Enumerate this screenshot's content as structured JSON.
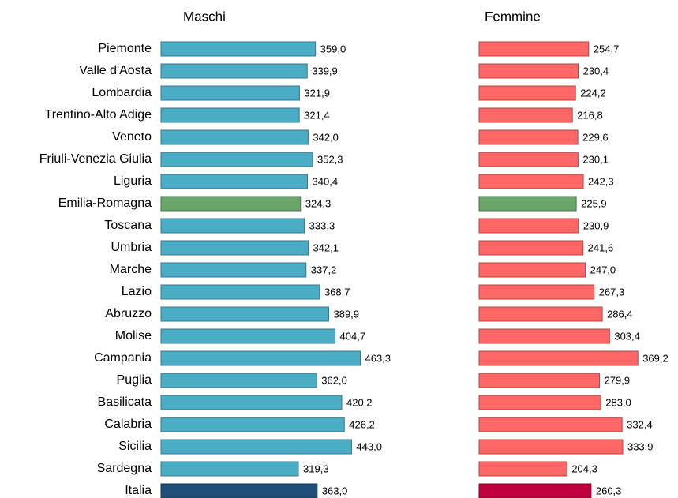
{
  "chart_data": [
    {
      "type": "hbar",
      "title": "Maschi",
      "categories": [
        "Piemonte",
        "Valle d'Aosta",
        "Lombardia",
        "Trentino-Alto Adige",
        "Veneto",
        "Friuli-Venezia Giulia",
        "Liguria",
        "Emilia-Romagna",
        "Toscana",
        "Umbria",
        "Marche",
        "Lazio",
        "Abruzzo",
        "Molise",
        "Campania",
        "Puglia",
        "Basilicata",
        "Calabria",
        "Sicilia",
        "Sardegna",
        "Italia"
      ],
      "values": [
        359.0,
        339.9,
        321.9,
        321.4,
        342.0,
        352.3,
        340.4,
        324.3,
        333.3,
        342.1,
        337.2,
        368.7,
        389.9,
        404.7,
        463.3,
        362.0,
        420.2,
        426.2,
        443.0,
        319.3,
        363.0
      ],
      "value_labels": [
        "359,0",
        "339,9",
        "321,9",
        "321,4",
        "342,0",
        "352,3",
        "340,4",
        "324,3",
        "333,3",
        "342,1",
        "337,2",
        "368,7",
        "389,9",
        "404,7",
        "463,3",
        "362,0",
        "420,2",
        "426,2",
        "443,0",
        "319,3",
        "363,0"
      ],
      "colors": [
        "#4bacc6",
        "#4bacc6",
        "#4bacc6",
        "#4bacc6",
        "#4bacc6",
        "#4bacc6",
        "#4bacc6",
        "#6aa56a",
        "#4bacc6",
        "#4bacc6",
        "#4bacc6",
        "#4bacc6",
        "#4bacc6",
        "#4bacc6",
        "#4bacc6",
        "#4bacc6",
        "#4bacc6",
        "#4bacc6",
        "#4bacc6",
        "#4bacc6",
        "#1f4e79"
      ]
    },
    {
      "type": "hbar",
      "title": "Femmine",
      "values": [
        254.7,
        230.4,
        224.2,
        216.8,
        229.6,
        230.1,
        242.3,
        225.9,
        230.9,
        241.6,
        247.0,
        267.3,
        286.4,
        303.4,
        369.2,
        279.9,
        283.0,
        332.4,
        333.9,
        204.3,
        260.3
      ],
      "value_labels": [
        "254,7",
        "230,4",
        "224,2",
        "216,8",
        "229,6",
        "230,1",
        "242,3",
        "225,9",
        "230,9",
        "241,6",
        "247,0",
        "267,3",
        "286,4",
        "303,4",
        "369,2",
        "279,9",
        "283,0",
        "332,4",
        "333,9",
        "204,3",
        "260,3"
      ],
      "colors": [
        "#ff6666",
        "#ff6666",
        "#ff6666",
        "#ff6666",
        "#ff6666",
        "#ff6666",
        "#ff6666",
        "#6aa56a",
        "#ff6666",
        "#ff6666",
        "#ff6666",
        "#ff6666",
        "#ff6666",
        "#ff6666",
        "#ff6666",
        "#ff6666",
        "#ff6666",
        "#ff6666",
        "#ff6666",
        "#ff6666",
        "#c0003c"
      ]
    }
  ]
}
